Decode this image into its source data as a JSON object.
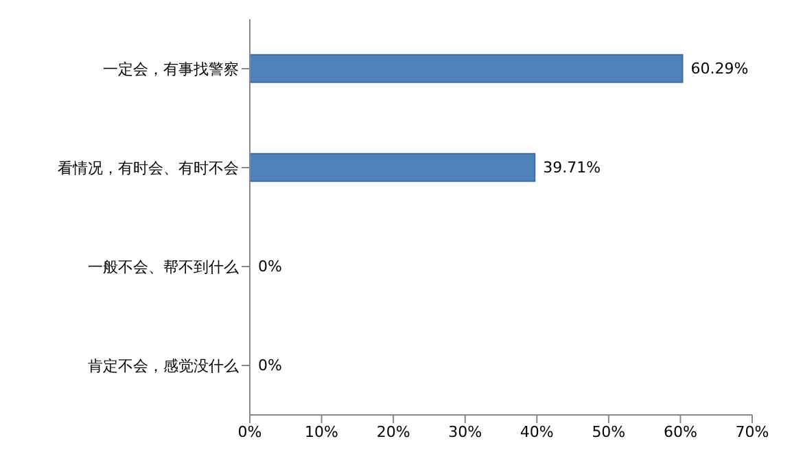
{
  "chart_data": {
    "type": "bar",
    "orientation": "horizontal",
    "categories": [
      "一定会，有事找警察",
      "看情况，有时会、有时不会",
      "一般不会、帮不到什么",
      "肯定不会，感觉没什么"
    ],
    "values": [
      60.29,
      39.71,
      0,
      0
    ],
    "value_labels": [
      "60.29%",
      "39.71%",
      "0%",
      "0%"
    ],
    "color": "#4f81bd",
    "xlim": [
      0,
      70
    ],
    "xticks": [
      {
        "value": 0,
        "label": "0%"
      },
      {
        "value": 10,
        "label": "10%"
      },
      {
        "value": 20,
        "label": "20%"
      },
      {
        "value": 30,
        "label": "30%"
      },
      {
        "value": 40,
        "label": "40%"
      },
      {
        "value": 50,
        "label": "50%"
      },
      {
        "value": 60,
        "label": "60%"
      },
      {
        "value": 70,
        "label": "70%"
      }
    ],
    "grid": false,
    "legend": false
  }
}
